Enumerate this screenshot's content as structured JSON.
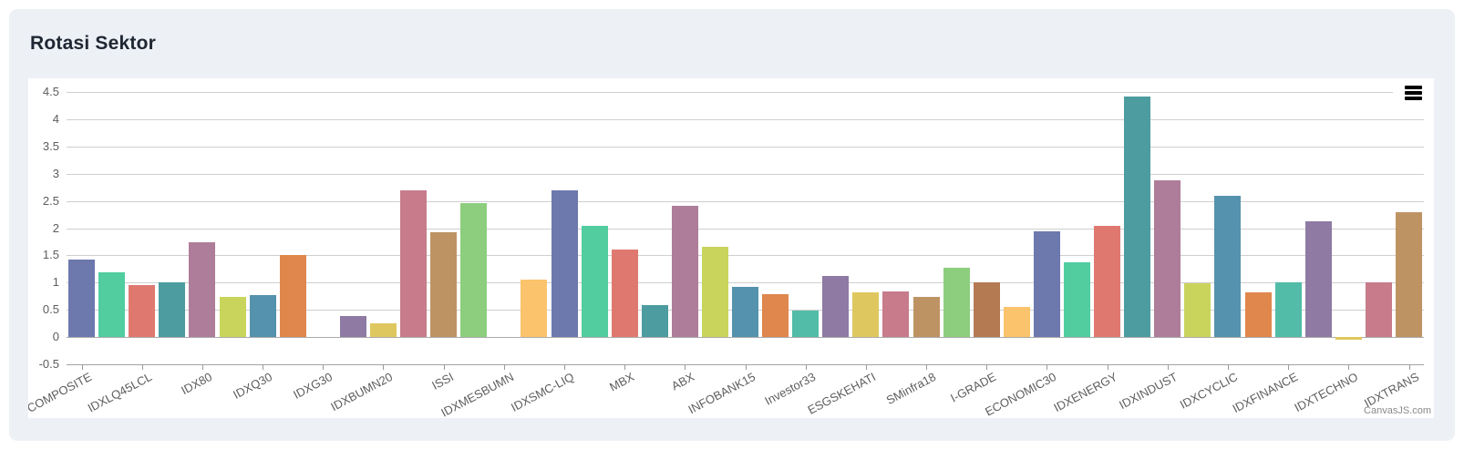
{
  "header": {
    "title": "Rotasi Sektor"
  },
  "icons": {
    "menu": "hamburger-menu-icon"
  },
  "chart_data": {
    "type": "bar",
    "title": "Rotasi Sektor",
    "xlabel": "",
    "ylabel": "",
    "ylim": [
      -0.5,
      4.5
    ],
    "y_tick_interval": 0.5,
    "y_tick_labels": [
      "4.5",
      "4",
      "3.5",
      "3",
      "2.5",
      "2",
      "1.5",
      "1",
      "0.5",
      "0",
      "-0.5"
    ],
    "grid": true,
    "legend_position": "none",
    "label_rotation_deg": -28,
    "attribution": "CanvasJS.com",
    "palette": [
      "#6D78AD",
      "#51CDA0",
      "#DF7970",
      "#4C9CA0",
      "#AE7D99",
      "#C9D45C",
      "#5592AD",
      "#DF874D",
      "#52BCA8",
      "#8E7AA3",
      "#DFC75F",
      "#C77B8B",
      "#BE9364",
      "#8DCE7E",
      "#B47A52",
      "#FBC36C"
    ],
    "points": [
      {
        "label": "COMPOSITE",
        "y": 1.42
      },
      {
        "label": "",
        "y": 1.19
      },
      {
        "label": "IDXLQ45LCL",
        "y": 0.95
      },
      {
        "label": "",
        "y": 1.0
      },
      {
        "label": "IDX80",
        "y": 1.74
      },
      {
        "label": "",
        "y": 0.73
      },
      {
        "label": "IDXQ30",
        "y": 0.77
      },
      {
        "label": "",
        "y": 1.5
      },
      {
        "label": "IDXG30",
        "y": 0.0
      },
      {
        "label": "",
        "y": 0.39
      },
      {
        "label": "IDXBUMN20",
        "y": 0.25
      },
      {
        "label": "",
        "y": 2.69
      },
      {
        "label": "ISSI",
        "y": 1.93
      },
      {
        "label": "",
        "y": 2.46
      },
      {
        "label": "IDXMESBUMN",
        "y": 0.0
      },
      {
        "label": "",
        "y": 1.05
      },
      {
        "label": "IDXSMC-LIQ",
        "y": 2.7
      },
      {
        "label": "",
        "y": 2.05
      },
      {
        "label": "MBX",
        "y": 1.6
      },
      {
        "label": "",
        "y": 0.59
      },
      {
        "label": "ABX",
        "y": 2.41
      },
      {
        "label": "",
        "y": 1.65
      },
      {
        "label": "INFOBANK15",
        "y": 0.92
      },
      {
        "label": "",
        "y": 0.79
      },
      {
        "label": "Investor33",
        "y": 0.49
      },
      {
        "label": "",
        "y": 1.12
      },
      {
        "label": "ESGSKEHATI",
        "y": 0.82
      },
      {
        "label": "",
        "y": 0.83
      },
      {
        "label": "SMinfra18",
        "y": 0.74
      },
      {
        "label": "",
        "y": 1.27
      },
      {
        "label": "I-GRADE",
        "y": 1.01
      },
      {
        "label": "",
        "y": 0.56
      },
      {
        "label": "ECONOMIC30",
        "y": 1.95
      },
      {
        "label": "",
        "y": 1.37
      },
      {
        "label": "IDXENERGY",
        "y": 2.04
      },
      {
        "label": "",
        "y": 4.42
      },
      {
        "label": "IDXINDUST",
        "y": 2.88
      },
      {
        "label": "",
        "y": 0.99
      },
      {
        "label": "IDXCYCLIC",
        "y": 2.59
      },
      {
        "label": "",
        "y": 0.82
      },
      {
        "label": "IDXFINANCE",
        "y": 1.0
      },
      {
        "label": "",
        "y": 2.13
      },
      {
        "label": "IDXTECHNO",
        "y": -0.05
      },
      {
        "label": "",
        "y": 1.0
      },
      {
        "label": "IDXTRANS",
        "y": 2.3
      }
    ]
  }
}
